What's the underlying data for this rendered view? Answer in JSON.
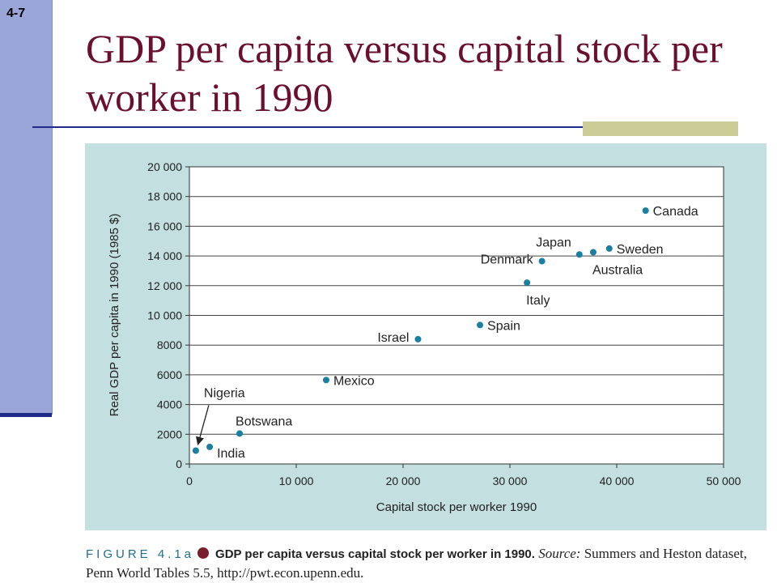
{
  "slide": {
    "number": "4-7",
    "title": "GDP per capita versus capital stock per worker in 1990"
  },
  "caption": {
    "figure_label": "FIGURE 4.1a",
    "bold_text": "GDP per capita versus capital stock per worker in 1990.",
    "source_label": "Source:",
    "source_text": "Summers and Heston dataset, Penn World Tables 5.5, http://pwt.econ.upenn.edu."
  },
  "colors": {
    "title": "#6b0f2e",
    "point": "#1a7fa0",
    "panel": "#c4dfe0",
    "figure_label": "#1f6f8b"
  },
  "chart_data": {
    "type": "scatter",
    "xlabel": "Capital stock per worker 1990",
    "ylabel": "Real GDP per capita in 1990 (1985 $)",
    "xlim": [
      0,
      50000
    ],
    "ylim": [
      0,
      20000
    ],
    "xticks": [
      0,
      10000,
      20000,
      30000,
      40000,
      50000
    ],
    "xtick_labels": [
      "0",
      "10 000",
      "20 000",
      "30 000",
      "40 000",
      "50 000"
    ],
    "yticks": [
      0,
      2000,
      4000,
      6000,
      8000,
      10000,
      12000,
      14000,
      16000,
      18000,
      20000
    ],
    "ytick_labels": [
      "0",
      "2000",
      "4000",
      "6000",
      "8000",
      "10 000",
      "12 000",
      "14 000",
      "16 000",
      "18 000",
      "20 000"
    ],
    "grid": "horizontal",
    "points": [
      {
        "label": "Nigeria",
        "x": 600,
        "y": 900,
        "label_pos": "arrow"
      },
      {
        "label": "India",
        "x": 1900,
        "y": 1150,
        "label_pos": "below-right"
      },
      {
        "label": "Botswana",
        "x": 4700,
        "y": 2050,
        "label_pos": "above"
      },
      {
        "label": "Mexico",
        "x": 12800,
        "y": 5650,
        "label_pos": "right"
      },
      {
        "label": "Israel",
        "x": 21400,
        "y": 8400,
        "label_pos": "left"
      },
      {
        "label": "Spain",
        "x": 27200,
        "y": 9350,
        "label_pos": "right"
      },
      {
        "label": "Italy",
        "x": 31600,
        "y": 12200,
        "label_pos": "below"
      },
      {
        "label": "Denmark",
        "x": 33000,
        "y": 13650,
        "label_pos": "left"
      },
      {
        "label": "Japan",
        "x": 36500,
        "y": 14100,
        "label_pos": "above-left"
      },
      {
        "label": "Australia",
        "x": 37800,
        "y": 14250,
        "label_pos": "below"
      },
      {
        "label": "Sweden",
        "x": 39300,
        "y": 14500,
        "label_pos": "right"
      },
      {
        "label": "Canada",
        "x": 42700,
        "y": 17050,
        "label_pos": "right"
      }
    ]
  }
}
